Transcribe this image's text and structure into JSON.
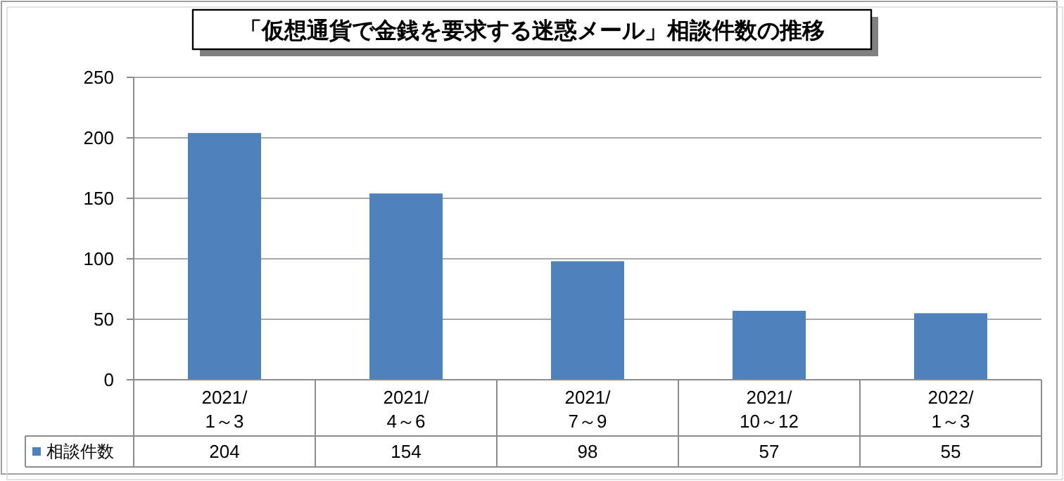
{
  "chart_data": {
    "type": "bar",
    "title": "「仮想通貨で金銭を要求する迷惑メール」相談件数の推移",
    "categories": [
      "2021/\n1～3",
      "2021/\n4～6",
      "2021/\n7～9",
      "2021/\n10～12",
      "2022/\n1～3"
    ],
    "series": [
      {
        "name": "相談件数",
        "color": "#4f81bd",
        "values": [
          204,
          154,
          98,
          57,
          55
        ]
      }
    ],
    "ylim": [
      0,
      250
    ],
    "yticks": [
      0,
      50,
      100,
      150,
      200,
      250
    ],
    "grid": "y",
    "data_labels": true
  }
}
